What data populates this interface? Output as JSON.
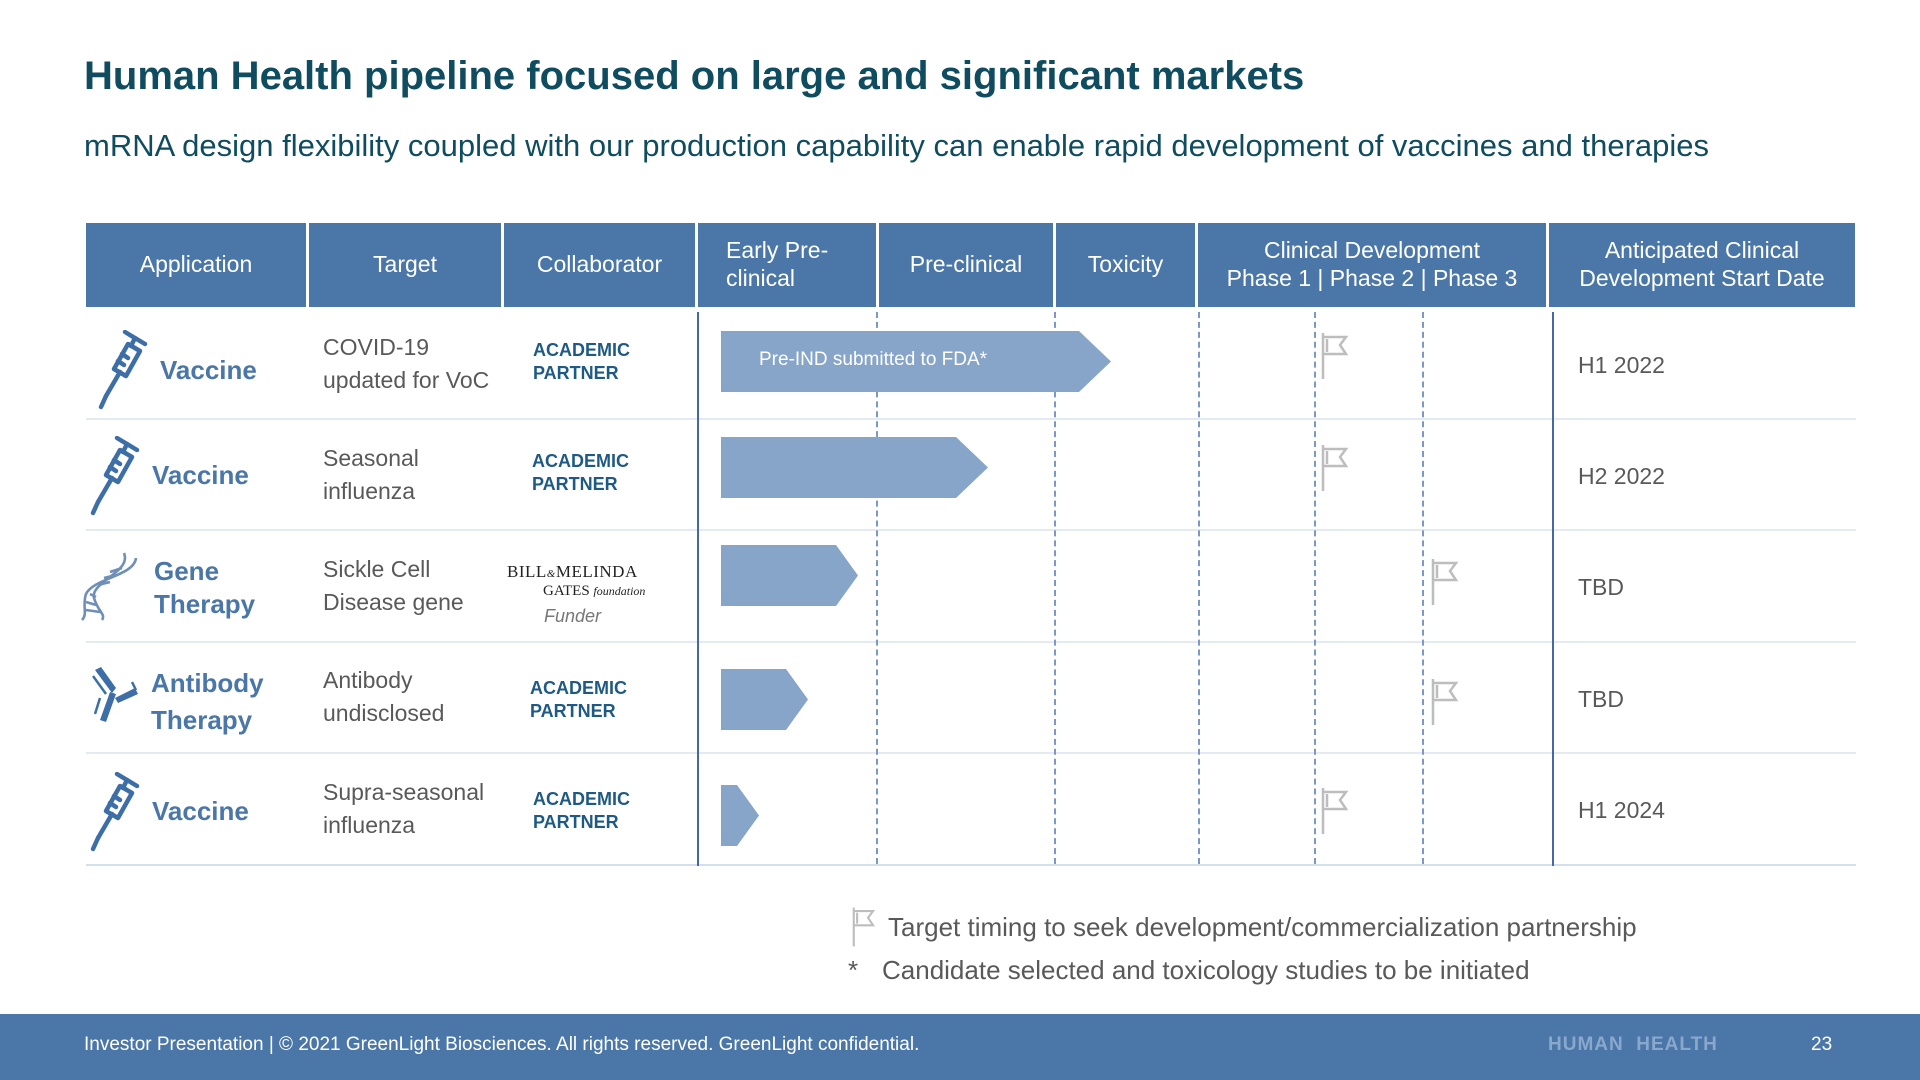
{
  "slide": {
    "title": "Human Health pipeline focused on large and significant markets",
    "subtitle": "mRNA design flexibility coupled with our production capability can enable rapid development of vaccines and therapies"
  },
  "table": {
    "headers": {
      "application": "Application",
      "target": "Target",
      "collaborator": "Collaborator",
      "early_preclinical_1": "Early Pre-",
      "early_preclinical_2": "clinical",
      "preclinical": "Pre-clinical",
      "toxicity": "Toxicity",
      "clinical_1": "Clinical Development",
      "clinical_2": "Phase 1 | Phase 2 | Phase 3",
      "anticipated_1": "Anticipated Clinical",
      "anticipated_2": "Development Start Date"
    },
    "rows": [
      {
        "icon": "syringe-icon",
        "app_1": "Vaccine",
        "app_2": "",
        "target_1": "COVID-19",
        "target_2": "updated for VoC",
        "collab_1": "ACADEMIC",
        "collab_2": "PARTNER",
        "stage_progress": 0.45,
        "bar_label": "Pre-IND submitted to FDA*",
        "partnership_flag": "Phase 1",
        "start_date": "H1 2022"
      },
      {
        "icon": "syringe-icon",
        "app_1": "Vaccine",
        "app_2": "",
        "target_1": "Seasonal",
        "target_2": "influenza",
        "collab_1": "ACADEMIC",
        "collab_2": "PARTNER",
        "stage_progress": 0.31,
        "bar_label": "",
        "partnership_flag": "Phase 1",
        "start_date": "H2 2022"
      },
      {
        "icon": "dna-icon",
        "app_1": "Gene",
        "app_2": "Therapy",
        "target_1": "Sickle Cell",
        "target_2": "Disease gene",
        "collab_logo_1": "BILL & MELINDA",
        "collab_logo_2": "GATES foundation",
        "collab_note": "Funder",
        "stage_progress": 0.16,
        "bar_label": "",
        "partnership_flag": "Phase 2",
        "start_date": "TBD"
      },
      {
        "icon": "antibody-icon",
        "app_1": "Antibody",
        "app_2": "Therapy",
        "target_1": "Antibody",
        "target_2": "undisclosed",
        "collab_1": "ACADEMIC",
        "collab_2": "PARTNER",
        "stage_progress": 0.1,
        "bar_label": "",
        "partnership_flag": "Phase 2",
        "start_date": "TBD"
      },
      {
        "icon": "syringe-icon",
        "app_1": "Vaccine",
        "app_2": "",
        "target_1": "Supra-seasonal",
        "target_2": "influenza",
        "collab_1": "ACADEMIC",
        "collab_2": "PARTNER",
        "stage_progress": 0.05,
        "bar_label": "",
        "partnership_flag": "Phase 1",
        "start_date": "H1 2024"
      }
    ]
  },
  "legend": {
    "flag_icon": "flag-icon",
    "flag_text": "Target timing to seek development/commercialization partnership",
    "asterisk": "*",
    "asterisk_text": "Candidate selected and toxicology studies to be initiated"
  },
  "footer": {
    "text": "Investor Presentation | © 2021 GreenLight Biosciences. All rights reserved. GreenLight confidential.",
    "section": "HUMAN  HEALTH",
    "page": "23"
  },
  "colors": {
    "title": "#0f4c5f",
    "header_bg": "#4a76a8",
    "bar": "#87a4c9",
    "accent_text": "#1f5a84",
    "flag": "#bdbdbd"
  }
}
